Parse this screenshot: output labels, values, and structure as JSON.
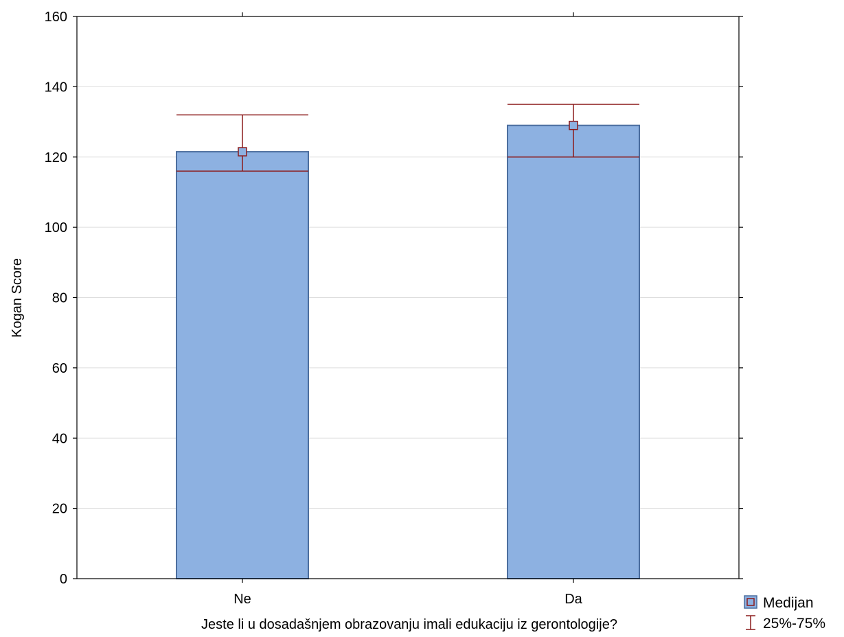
{
  "chart_data": {
    "type": "bar",
    "categories": [
      "Ne",
      "Da"
    ],
    "series": [
      {
        "name": "Medijan",
        "values": [
          121.5,
          129
        ],
        "q25": [
          116,
          120
        ],
        "q75": [
          132,
          135
        ]
      }
    ],
    "error_bar_label": "25%-75%",
    "xlabel": "Jeste li u dosadašnjem obrazovanju imali edukaciju iz gerontologije?",
    "ylabel": "Kogan Score",
    "ylim": [
      0,
      160
    ],
    "yticks": [
      0,
      20,
      40,
      60,
      80,
      100,
      120,
      140,
      160
    ],
    "grid": true,
    "legend_position": "bottom-right",
    "colors": {
      "bar_fill": "#8DB1E1",
      "bar_stroke": "#4C6E9E",
      "error_bar": "#8B1A1A",
      "gridline": "#DDDDDD"
    }
  }
}
